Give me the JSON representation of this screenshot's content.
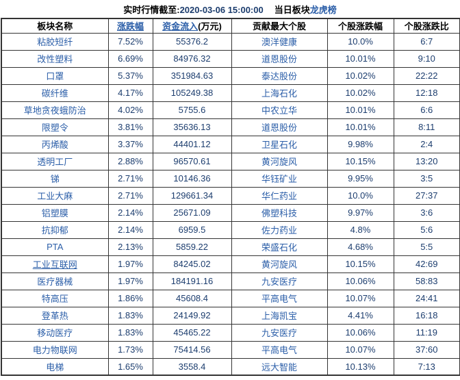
{
  "title": {
    "prefix": "实时行情截至:",
    "datetime": "2020-03-06 15:00:00",
    "middle": "当日板块",
    "link": "龙虎榜"
  },
  "table": {
    "headers": {
      "sector": "板块名称",
      "change": "涨跌幅",
      "inflow": "资金流入",
      "inflow_unit": "(万元)",
      "stock": "贡献最大个股",
      "stock_change": "个股涨跌幅",
      "ratio": "个股涨跌比"
    },
    "rows": [
      {
        "sector": "粘胶短纤",
        "change": "7.52%",
        "inflow": "55376.2",
        "stock": "澳洋健康",
        "stock_change": "10.0%",
        "ratio": "6:7"
      },
      {
        "sector": "改性塑料",
        "change": "6.69%",
        "inflow": "84976.32",
        "stock": "道恩股份",
        "stock_change": "10.01%",
        "ratio": "9:10"
      },
      {
        "sector": "口罩",
        "change": "5.37%",
        "inflow": "351984.63",
        "stock": "泰达股份",
        "stock_change": "10.02%",
        "ratio": "22:22"
      },
      {
        "sector": "碳纤维",
        "change": "4.17%",
        "inflow": "105249.38",
        "stock": "上海石化",
        "stock_change": "10.02%",
        "ratio": "12:18"
      },
      {
        "sector": "草地贪夜蛾防治",
        "change": "4.02%",
        "inflow": "5755.6",
        "stock": "中农立华",
        "stock_change": "10.01%",
        "ratio": "6:6"
      },
      {
        "sector": "限塑令",
        "change": "3.81%",
        "inflow": "35636.13",
        "stock": "道恩股份",
        "stock_change": "10.01%",
        "ratio": "8:11"
      },
      {
        "sector": "丙烯酸",
        "change": "3.37%",
        "inflow": "44401.12",
        "stock": "卫星石化",
        "stock_change": "9.98%",
        "ratio": "2:4"
      },
      {
        "sector": "透明工厂",
        "change": "2.88%",
        "inflow": "96570.61",
        "stock": "黄河旋风",
        "stock_change": "10.15%",
        "ratio": "13:20"
      },
      {
        "sector": "锑",
        "change": "2.71%",
        "inflow": "10146.36",
        "stock": "华钰矿业",
        "stock_change": "9.95%",
        "ratio": "3:5"
      },
      {
        "sector": "工业大麻",
        "change": "2.71%",
        "inflow": "129661.34",
        "stock": "华仁药业",
        "stock_change": "10.0%",
        "ratio": "27:37"
      },
      {
        "sector": "铝塑膜",
        "change": "2.14%",
        "inflow": "25671.09",
        "stock": "佛塑科技",
        "stock_change": "9.97%",
        "ratio": "3:6"
      },
      {
        "sector": "抗抑郁",
        "change": "2.14%",
        "inflow": "6959.5",
        "stock": "佐力药业",
        "stock_change": "4.8%",
        "ratio": "5:6"
      },
      {
        "sector": "PTA",
        "change": "2.13%",
        "inflow": "5859.22",
        "stock": "荣盛石化",
        "stock_change": "4.68%",
        "ratio": "5:5"
      },
      {
        "sector": "工业互联网",
        "change": "1.97%",
        "inflow": "84245.02",
        "stock": "黄河旋风",
        "stock_change": "10.15%",
        "ratio": "42:69",
        "underline": true
      },
      {
        "sector": "医疗器械",
        "change": "1.97%",
        "inflow": "184191.16",
        "stock": "九安医疗",
        "stock_change": "10.06%",
        "ratio": "58:83"
      },
      {
        "sector": "特高压",
        "change": "1.86%",
        "inflow": "45608.4",
        "stock": "平高电气",
        "stock_change": "10.07%",
        "ratio": "24:41"
      },
      {
        "sector": "登革热",
        "change": "1.83%",
        "inflow": "24149.92",
        "stock": "上海凯宝",
        "stock_change": "4.41%",
        "ratio": "16:18"
      },
      {
        "sector": "移动医疗",
        "change": "1.83%",
        "inflow": "45465.22",
        "stock": "九安医疗",
        "stock_change": "10.06%",
        "ratio": "11:19"
      },
      {
        "sector": "电力物联网",
        "change": "1.73%",
        "inflow": "75414.56",
        "stock": "平高电气",
        "stock_change": "10.07%",
        "ratio": "37:60"
      },
      {
        "sector": "电梯",
        "change": "1.65%",
        "inflow": "3558.4",
        "stock": "远大智能",
        "stock_change": "10.13%",
        "ratio": "7:13"
      }
    ]
  },
  "colors": {
    "link_blue": "#2B5EA8",
    "number_navy": "#1C3D6E",
    "border": "#333333",
    "text_black": "#000000",
    "background": "#FFFFFF"
  }
}
